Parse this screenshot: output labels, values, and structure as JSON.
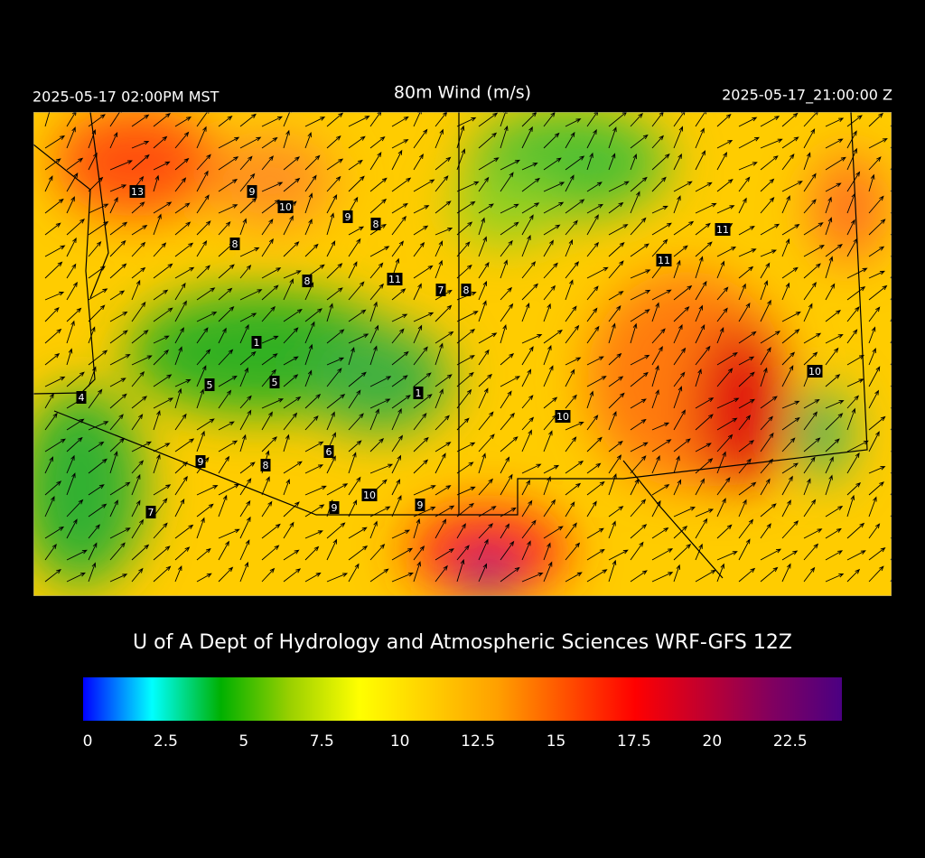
{
  "header": {
    "local_time": "2025-05-17 02:00PM MST",
    "title": "80m Wind (m/s)",
    "utc_time": "2025-05-17_21:00:00 Z"
  },
  "map": {
    "stations": [
      13,
      9,
      10,
      9,
      8,
      8,
      8,
      11,
      7,
      8,
      11,
      11,
      1,
      5,
      5,
      1,
      4,
      10,
      10,
      6,
      9,
      8,
      10,
      9,
      9,
      7
    ]
  },
  "credit": "U of A Dept of Hydrology and Atmospheric Sciences WRF-GFS 12Z",
  "colorbar": {
    "range": [
      0,
      24.3
    ],
    "ticks": [
      0,
      2.5,
      5,
      7.5,
      10,
      12.5,
      15,
      17.5,
      20,
      22.5
    ],
    "colors": [
      "#0000ff",
      "#00ffff",
      "#00b000",
      "#9ad000",
      "#ffff00",
      "#ffd000",
      "#ffa000",
      "#ff5000",
      "#ff0000",
      "#c00030",
      "#800060",
      "#4b0082"
    ]
  }
}
